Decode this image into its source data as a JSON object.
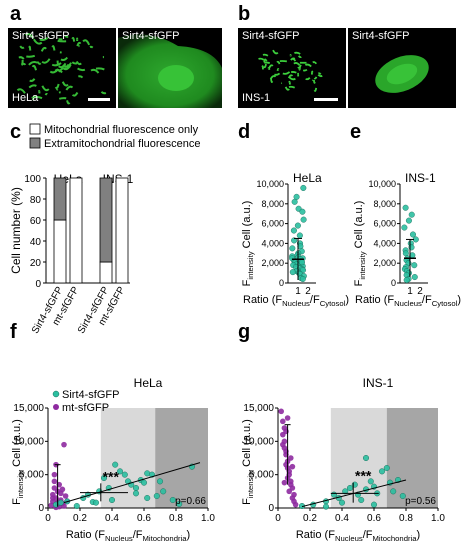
{
  "panels": {
    "a": {
      "letter": "a",
      "img1_label": "Sirt4-sfGFP",
      "img2_label": "Sirt4-sfGFP",
      "cell_line": "HeLa"
    },
    "b": {
      "letter": "b",
      "img1_label": "Sirt4-sfGFP",
      "img2_label": "Sirt4-sfGFP",
      "cell_line": "INS-1"
    },
    "c": {
      "letter": "c"
    },
    "d": {
      "letter": "d"
    },
    "e": {
      "letter": "e"
    },
    "f": {
      "letter": "f"
    },
    "g": {
      "letter": "g"
    }
  },
  "colors": {
    "teal": "#2bbfa0",
    "purple": "#8e2aa0",
    "dark_bar": "#808080",
    "light_zone": "#d9d9d9",
    "dark_zone": "#a6a6a6"
  },
  "chart_data": [
    {
      "id": "c",
      "type": "bar",
      "stacked": true,
      "legend": [
        "Mitochondrial fluorescence only",
        "Extramitochondrial fluorescence"
      ],
      "groups": [
        "HeLa",
        "INS-1"
      ],
      "categories": [
        "Sirt4-sfGFP",
        "mt-sfGFP",
        "Sirt4-sfGFP",
        "mt-sfGFP"
      ],
      "series": [
        {
          "name": "Mitochondrial fluorescence only",
          "values": [
            60,
            100,
            20,
            100
          ]
        },
        {
          "name": "Extramitochondrial fluorescence",
          "values": [
            40,
            0,
            80,
            0
          ]
        }
      ],
      "ylabel": "Cell number (%)",
      "yticks": [
        "0",
        "20",
        "40",
        "60",
        "80",
        "100"
      ],
      "ylim": [
        0,
        100
      ]
    },
    {
      "id": "d",
      "type": "scatter",
      "title": "HeLa",
      "ylabel_main": "F",
      "ylabel_sub": "intensity",
      "ylabel_rest": " Cell (a.u.)",
      "xlabel_main": "Ratio (F",
      "xlabel_sub1": "Nucleus",
      "xlabel_mid": "/F",
      "xlabel_sub2": "Cytosol",
      "xlabel_end": ")",
      "xticks": [
        "1",
        "2"
      ],
      "yticks": [
        "0",
        "2,000",
        "4,000",
        "6,000",
        "8,000",
        "10,000"
      ],
      "ylim": [
        0,
        10000
      ],
      "points": [
        9600,
        8700,
        8200,
        7500,
        7200,
        6400,
        5800,
        5300,
        4800,
        4300,
        4000,
        3700,
        3500,
        3200,
        3000,
        2800,
        2700,
        2600,
        2500,
        2400,
        2300,
        2200,
        2100,
        2000,
        1900,
        1800,
        1700,
        1600,
        1500,
        1400,
        1300,
        1200,
        1100,
        1000,
        900,
        700,
        500,
        400,
        2500,
        2100
      ],
      "mean": 2400,
      "sd": 2100
    },
    {
      "id": "e",
      "type": "scatter",
      "title": "INS-1",
      "ylabel_main": "F",
      "ylabel_sub": "intensity",
      "ylabel_rest": " Cell (a.u.)",
      "xlabel_main": "Ratio (F",
      "xlabel_sub1": "Nucleus",
      "xlabel_mid": "/F",
      "xlabel_sub2": "Cytosol",
      "xlabel_end": ")",
      "xticks": [
        "1",
        "2"
      ],
      "yticks": [
        "0",
        "2,000",
        "4,000",
        "6,000",
        "8,000",
        "10,000"
      ],
      "ylim": [
        0,
        10000
      ],
      "points": [
        7600,
        6900,
        6300,
        5600,
        4900,
        4400,
        4000,
        3600,
        3300,
        3000,
        2800,
        2500,
        2300,
        2000,
        1800,
        1600,
        1400,
        1200,
        1000,
        800,
        600,
        400,
        300
      ],
      "mean": 2500,
      "sd": 1900
    },
    {
      "id": "f",
      "type": "scatter",
      "title": "HeLa",
      "legend": [
        "Sirt4-sfGFP",
        "mt-sfGFP"
      ],
      "ylabel_main": "F",
      "ylabel_sub": "intensity",
      "ylabel_rest": " Cell (a.u.)",
      "xlabel_main": "Ratio (F",
      "xlabel_sub1": "Nucleus",
      "xlabel_mid": "/F",
      "xlabel_sub2": "Mitochondria",
      "xlabel_end": ")",
      "xticks": [
        "0",
        "0.2",
        "0.4",
        "0.6",
        "0.8",
        "1.0"
      ],
      "yticks": [
        "0",
        "5,000",
        "10,000",
        "15,000"
      ],
      "xlim": [
        0,
        1
      ],
      "ylim": [
        0,
        15000
      ],
      "zones": [
        [
          0.33,
          0.67
        ],
        [
          0.67,
          1.0
        ]
      ],
      "annotation": "***",
      "pvalue": "p=0.66",
      "sirt4": [
        [
          0.05,
          500
        ],
        [
          0.08,
          800
        ],
        [
          0.12,
          1000
        ],
        [
          0.18,
          300
        ],
        [
          0.22,
          1500
        ],
        [
          0.25,
          2000
        ],
        [
          0.28,
          900
        ],
        [
          0.32,
          2500
        ],
        [
          0.35,
          4500
        ],
        [
          0.38,
          3000
        ],
        [
          0.42,
          6500
        ],
        [
          0.45,
          5500
        ],
        [
          0.48,
          5000
        ],
        [
          0.5,
          4000
        ],
        [
          0.52,
          3500
        ],
        [
          0.55,
          3000
        ],
        [
          0.58,
          4200
        ],
        [
          0.6,
          3800
        ],
        [
          0.62,
          5200
        ],
        [
          0.65,
          5000
        ],
        [
          0.68,
          1800
        ],
        [
          0.7,
          4000
        ],
        [
          0.72,
          2500
        ],
        [
          0.78,
          1200
        ],
        [
          0.82,
          600
        ],
        [
          0.9,
          6200
        ],
        [
          0.62,
          1500
        ],
        [
          0.55,
          2200
        ],
        [
          0.4,
          1200
        ],
        [
          0.3,
          800
        ]
      ],
      "mt": [
        [
          0.02,
          400
        ],
        [
          0.03,
          1000
        ],
        [
          0.03,
          2000
        ],
        [
          0.04,
          3000
        ],
        [
          0.04,
          5000
        ],
        [
          0.05,
          6500
        ],
        [
          0.05,
          1500
        ],
        [
          0.06,
          2500
        ],
        [
          0.06,
          800
        ],
        [
          0.07,
          3500
        ],
        [
          0.07,
          200
        ],
        [
          0.08,
          1200
        ],
        [
          0.08,
          2200
        ],
        [
          0.09,
          700
        ],
        [
          0.1,
          9500
        ],
        [
          0.1,
          300
        ],
        [
          0.11,
          1800
        ],
        [
          0.04,
          4000
        ],
        [
          0.05,
          100
        ],
        [
          0.06,
          600
        ],
        [
          0.09,
          2800
        ],
        [
          0.12,
          1000
        ],
        [
          0.03,
          1500
        ],
        [
          0.07,
          900
        ]
      ],
      "sirt4_mean": [
        0.33,
        2300
      ],
      "sirt4_sdx": [
        0.2,
        0.5
      ],
      "sirt4_sdy": [
        1000,
        3700
      ],
      "mt_mean": [
        0.06,
        2100
      ],
      "mt_sdy": [
        200,
        6500
      ],
      "fit": [
        [
          0.1,
          800
        ],
        [
          0.95,
          6800
        ]
      ]
    },
    {
      "id": "g",
      "type": "scatter",
      "title": "INS-1",
      "ylabel_main": "F",
      "ylabel_sub": "intensity",
      "ylabel_rest": " Cell (a.u.)",
      "xlabel_main": "Ratio (F",
      "xlabel_sub1": "Nucleus",
      "xlabel_mid": "/F",
      "xlabel_sub2": "Mitochondria",
      "xlabel_end": ")",
      "xticks": [
        "0",
        "0.2",
        "0.4",
        "0.6",
        "0.8",
        "1.0"
      ],
      "yticks": [
        "0",
        "5,000",
        "10,000",
        "15,000"
      ],
      "xlim": [
        0,
        1
      ],
      "ylim": [
        0,
        15000
      ],
      "zones": [
        [
          0.33,
          0.68
        ],
        [
          0.68,
          1.0
        ]
      ],
      "annotation": "***",
      "pvalue": "p=0.56",
      "sirt4": [
        [
          0.15,
          300
        ],
        [
          0.22,
          500
        ],
        [
          0.3,
          1000
        ],
        [
          0.35,
          2000
        ],
        [
          0.38,
          1500
        ],
        [
          0.42,
          2500
        ],
        [
          0.45,
          3000
        ],
        [
          0.48,
          3500
        ],
        [
          0.5,
          2000
        ],
        [
          0.52,
          1200
        ],
        [
          0.55,
          2800
        ],
        [
          0.58,
          4000
        ],
        [
          0.6,
          3200
        ],
        [
          0.62,
          2200
        ],
        [
          0.65,
          5500
        ],
        [
          0.68,
          6000
        ],
        [
          0.7,
          3800
        ],
        [
          0.72,
          2500
        ],
        [
          0.75,
          4200
        ],
        [
          0.78,
          1800
        ],
        [
          0.55,
          7500
        ],
        [
          0.6,
          500
        ],
        [
          0.4,
          800
        ],
        [
          0.3,
          200
        ]
      ],
      "mt": [
        [
          0.02,
          14500
        ],
        [
          0.03,
          13000
        ],
        [
          0.03,
          11000
        ],
        [
          0.04,
          10000
        ],
        [
          0.04,
          9000
        ],
        [
          0.05,
          8500
        ],
        [
          0.05,
          8000
        ],
        [
          0.06,
          7000
        ],
        [
          0.06,
          6000
        ],
        [
          0.07,
          5500
        ],
        [
          0.07,
          5000
        ],
        [
          0.08,
          4000
        ],
        [
          0.08,
          3500
        ],
        [
          0.09,
          3000
        ],
        [
          0.1,
          2000
        ],
        [
          0.1,
          1000
        ],
        [
          0.11,
          500
        ],
        [
          0.04,
          12000
        ],
        [
          0.05,
          6500
        ],
        [
          0.06,
          4500
        ],
        [
          0.07,
          2500
        ],
        [
          0.09,
          1500
        ],
        [
          0.03,
          9500
        ],
        [
          0.08,
          7500
        ],
        [
          0.05,
          11500
        ],
        [
          0.06,
          13500
        ],
        [
          0.04,
          3800
        ],
        [
          0.09,
          6200
        ]
      ],
      "sirt4_mean": [
        0.47,
        2200
      ],
      "sirt4_sdx": [
        0.33,
        0.63
      ],
      "sirt4_sdy": [
        800,
        3800
      ],
      "mt_mean": [
        0.06,
        8000
      ],
      "mt_sdy": [
        3500,
        12500
      ],
      "fit": [
        [
          0.15,
          200
        ],
        [
          0.8,
          4200
        ]
      ]
    }
  ]
}
